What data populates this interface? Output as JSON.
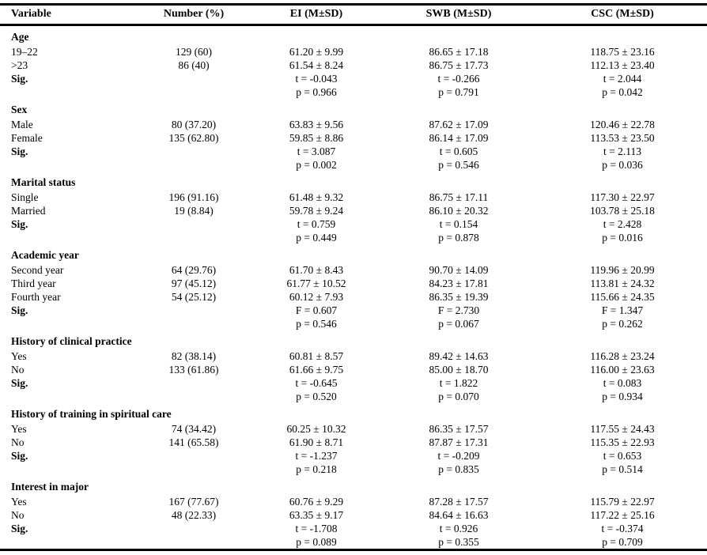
{
  "table": {
    "columns": [
      "Variable",
      "Number (%)",
      "EI (M±SD)",
      "SWB (M±SD)",
      "CSC (M±SD)"
    ],
    "sections": [
      {
        "title": "Age",
        "rows": [
          [
            "19–22",
            "129 (60)",
            "61.20 ± 9.99",
            "86.65 ± 17.18",
            "118.75 ± 23.16"
          ],
          [
            ">23",
            "86 (40)",
            "61.54 ± 8.24",
            "86.75 ± 17.73",
            "112.13 ± 23.40"
          ],
          [
            "Sig.",
            "",
            "t = -0.043",
            "t = -0.266",
            "t = 2.044"
          ],
          [
            "",
            "",
            "p = 0.966",
            "p = 0.791",
            "p = 0.042"
          ]
        ]
      },
      {
        "title": "Sex",
        "rows": [
          [
            "Male",
            "80 (37.20)",
            "63.83 ± 9.56",
            "87.62 ± 17.09",
            "120.46 ± 22.78"
          ],
          [
            "Female",
            "135 (62.80)",
            "59.85 ± 8.86",
            "86.14 ± 17.09",
            "113.53 ± 23.50"
          ],
          [
            "Sig.",
            "",
            "t = 3.087",
            "t = 0.605",
            "t = 2.113"
          ],
          [
            "",
            "",
            "p = 0.002",
            "p = 0.546",
            "p = 0.036"
          ]
        ]
      },
      {
        "title": "Marital status",
        "rows": [
          [
            "Single",
            "196 (91.16)",
            "61.48 ± 9.32",
            "86.75 ± 17.11",
            "117.30 ± 22.97"
          ],
          [
            "Married",
            "19 (8.84)",
            "59.78 ± 9.24",
            "86.10 ± 20.32",
            "103.78 ± 25.18"
          ],
          [
            "Sig.",
            "",
            "t = 0.759",
            "t = 0.154",
            "t = 2.428"
          ],
          [
            "",
            "",
            "p = 0.449",
            "p = 0.878",
            "p = 0.016"
          ]
        ]
      },
      {
        "title": "Academic year",
        "rows": [
          [
            "Second year",
            "64 (29.76)",
            "61.70 ± 8.43",
            "90.70 ± 14.09",
            "119.96 ± 20.99"
          ],
          [
            "Third year",
            "97 (45.12)",
            "61.77 ± 10.52",
            "84.23 ± 17.81",
            "113.81 ± 24.32"
          ],
          [
            "Fourth year",
            "54 (25.12)",
            "60.12 ± 7.93",
            "86.35 ± 19.39",
            "115.66 ± 24.35"
          ],
          [
            "Sig.",
            "",
            "F = 0.607",
            "F = 2.730",
            "F = 1.347"
          ],
          [
            "",
            "",
            "p = 0.546",
            "p = 0.067",
            "p = 0.262"
          ]
        ]
      },
      {
        "title": "History of clinical practice",
        "rows": [
          [
            "Yes",
            "82 (38.14)",
            "60.81 ± 8.57",
            "89.42 ± 14.63",
            "116.28 ± 23.24"
          ],
          [
            "No",
            "133 (61.86)",
            "61.66 ± 9.75",
            "85.00 ± 18.70",
            "116.00 ± 23.63"
          ],
          [
            "Sig.",
            "",
            "t = -0.645",
            "t = 1.822",
            "t = 0.083"
          ],
          [
            "",
            "",
            "p = 0.520",
            "p = 0.070",
            "p = 0.934"
          ]
        ]
      },
      {
        "title": "History of training in spiritual care",
        "rows": [
          [
            "Yes",
            "74 (34.42)",
            "60.25 ± 10.32",
            "86.35 ± 17.57",
            "117.55 ± 24.43"
          ],
          [
            "No",
            "141 (65.58)",
            "61.90 ± 8.71",
            "87.87 ± 17.31",
            "115.35 ± 22.93"
          ],
          [
            "Sig.",
            "",
            "t = -1.237",
            "t = -0.209",
            "t = 0.653"
          ],
          [
            "",
            "",
            "p = 0.218",
            "p = 0.835",
            "p = 0.514"
          ]
        ]
      },
      {
        "title": "Interest in major",
        "rows": [
          [
            "Yes",
            "167 (77.67)",
            "60.76 ± 9.29",
            "87.28 ± 17.57",
            "115.79 ± 22.97"
          ],
          [
            "No",
            "48 (22.33)",
            "63.35 ± 9.17",
            "84.64 ± 16.63",
            "117.22 ± 25.16"
          ],
          [
            "Sig.",
            "",
            "t = -1.708",
            "t = 0.926",
            "t = -0.374"
          ],
          [
            "",
            "",
            "p = 0.089",
            "p = 0.355",
            "p = 0.709"
          ]
        ]
      }
    ]
  }
}
